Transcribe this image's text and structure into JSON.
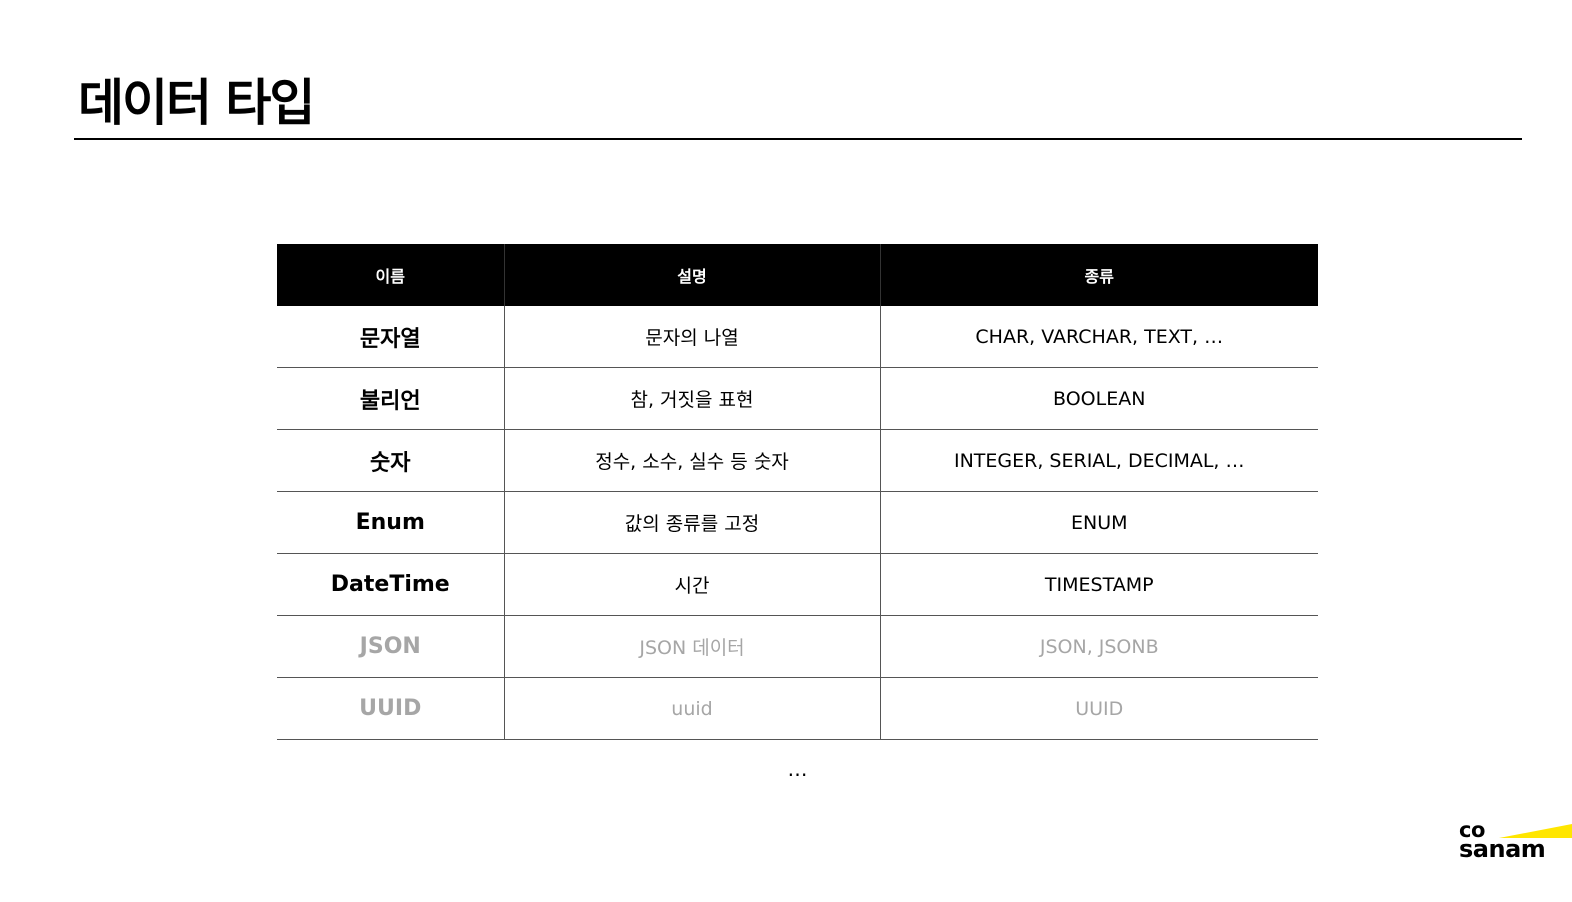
{
  "title": "데이터 타입",
  "table": {
    "headers": [
      "이름",
      "설명",
      "종류"
    ],
    "rows": [
      {
        "name": "문자열",
        "description": "문자의 나열",
        "kinds": "CHAR, VARCHAR, TEXT, …",
        "muted": false
      },
      {
        "name": "불리언",
        "description": "참, 거짓을 표현",
        "kinds": "BOOLEAN",
        "muted": false
      },
      {
        "name": "숫자",
        "description": "정수, 소수, 실수 등 숫자",
        "kinds": "INTEGER, SERIAL, DECIMAL, …",
        "muted": false
      },
      {
        "name": "Enum",
        "description": "값의 종류를 고정",
        "kinds": "ENUM",
        "muted": false
      },
      {
        "name": "DateTime",
        "description": "시간",
        "kinds": "TIMESTAMP",
        "muted": false
      },
      {
        "name": "JSON",
        "description": "JSON 데이터",
        "kinds": "JSON, JSONB",
        "muted": true
      },
      {
        "name": "UUID",
        "description": "uuid",
        "kinds": "UUID",
        "muted": true
      }
    ],
    "more": "…"
  },
  "brand": {
    "line1": "co",
    "line2": "sanam",
    "accent_color": "#ffe600"
  },
  "colors": {
    "header_bg": "#000000",
    "muted_text": "#a6a6a6"
  }
}
